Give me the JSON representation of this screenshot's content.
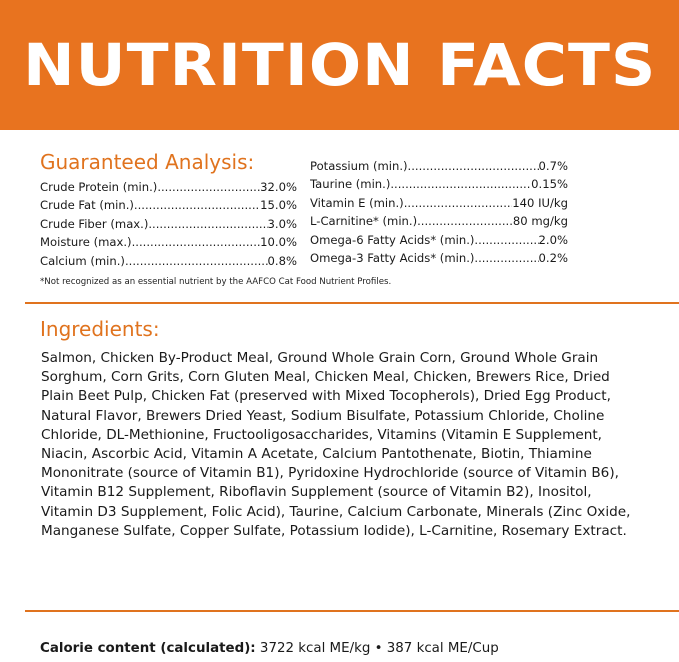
{
  "header": {
    "title": "NUTRITION FACTS"
  },
  "colors": {
    "accent": "#e8731f",
    "title_text": "#e0731e",
    "banner_text": "#ffffff"
  },
  "guaranteed_analysis": {
    "title": "Guaranteed Analysis:",
    "left_column": [
      {
        "label": "Crude Protein (min.)",
        "value": "32.0%"
      },
      {
        "label": "Crude Fat (min.)",
        "value": "15.0%"
      },
      {
        "label": "Crude Fiber (max.)",
        "value": "3.0%"
      },
      {
        "label": "Moisture (max.)",
        "value": "10.0%"
      },
      {
        "label": "Calcium (min.)",
        "value": "0.8%"
      }
    ],
    "right_column": [
      {
        "label": "Potassium (min.)",
        "value": "0.7%"
      },
      {
        "label": "Taurine (min.)",
        "value": "0.15%"
      },
      {
        "label": "Vitamin E (min.)",
        "value": "140 IU/kg"
      },
      {
        "label": "L-Carnitine* (min.)",
        "value": "80 mg/kg"
      },
      {
        "label": "Omega-6 Fatty Acids* (min.)",
        "value": "2.0%"
      },
      {
        "label": "Omega-3 Fatty Acids* (min.)",
        "value": "0.2%"
      }
    ],
    "footnote": "*Not recognized as an essential nutrient by the AAFCO Cat Food Nutrient Profiles."
  },
  "ingredients": {
    "title": "Ingredients:",
    "text": "Salmon, Chicken By-Product Meal, Ground Whole Grain Corn, Ground Whole Grain Sorghum, Corn Grits, Corn Gluten Meal, Chicken Meal, Chicken, Brewers Rice, Dried Plain Beet Pulp, Chicken Fat (preserved with Mixed Tocopherols), Dried Egg Product, Natural Flavor, Brewers Dried Yeast, Sodium Bisulfate, Potassium Chloride, Choline Chloride, DL-Methionine, Fructooligosaccharides, Vitamins (Vitamin E Supplement, Niacin, Ascorbic Acid, Vitamin A Acetate, Calcium Pantothenate, Biotin, Thiamine Mononitrate (source of Vitamin B1), Pyridoxine Hydrochloride (source of Vitamin B6), Vitamin B12 Supplement, Riboflavin Supplement (source of Vitamin B2), Inositol, Vitamin D3 Supplement, Folic Acid), Taurine, Calcium Carbonate, Minerals (Zinc Oxide, Manganese Sulfate, Copper Sulfate, Potassium Iodide), L-Carnitine, Rosemary Extract."
  },
  "calorie": {
    "label": "Calorie content (calculated):",
    "value": " 3722 kcal ME/kg • 387 kcal ME/Cup"
  }
}
